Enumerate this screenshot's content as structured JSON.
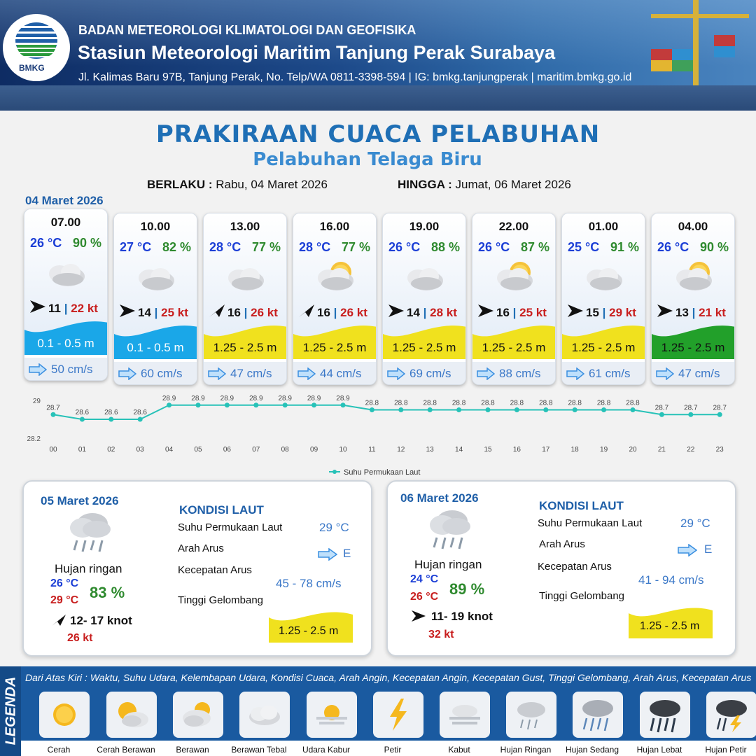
{
  "header": {
    "org": "BADAN METEOROLOGI KLIMATOLOGI DAN GEOFISIKA",
    "station": "Stasiun Meteorologi Maritim Tanjung Perak Surabaya",
    "address": "Jl. Kalimas Baru 97B, Tanjung Perak, No. Telp/WA 0811-3398-594 | IG: bmkg.tanjungperak | maritim.bmkg.go.id",
    "logo_text": "BMKG"
  },
  "title": "PRAKIRAAN CUACA PELABUHAN",
  "subtitle": "Pelabuhan Telaga Biru",
  "validity": {
    "from_label": "BERLAKU :",
    "from_value": "Rabu, 04 Maret 2026",
    "to_label": "HINGGA :",
    "to_value": "Jumat, 06 Maret 2026"
  },
  "day1_label": "04 Maret 2026",
  "forecasts": [
    {
      "time": "07.00",
      "temp": "26 °C",
      "hum": "90 %",
      "icon": "berawan-tebal",
      "wind_dir": "E",
      "wind": "11",
      "gust": "22 kt",
      "wave": "0.1 - 0.5 m",
      "wave_color": "#1aa7e8",
      "current": "50 cm/s"
    },
    {
      "time": "10.00",
      "temp": "27 °C",
      "hum": "82 %",
      "icon": "berawan-tebal",
      "wind_dir": "E",
      "wind": "14",
      "gust": "25 kt",
      "wave": "0.1 - 0.5 m",
      "wave_color": "#1aa7e8",
      "current": "60 cm/s"
    },
    {
      "time": "13.00",
      "temp": "28 °C",
      "hum": "77 %",
      "icon": "berawan-tebal",
      "wind_dir": "NE",
      "wind": "16",
      "gust": "26 kt",
      "wave": "1.25 - 2.5 m",
      "wave_color": "#f0e11e",
      "current": "47 cm/s"
    },
    {
      "time": "16.00",
      "temp": "28 °C",
      "hum": "77 %",
      "icon": "berawan",
      "wind_dir": "NE",
      "wind": "16",
      "gust": "26 kt",
      "wave": "1.25 - 2.5 m",
      "wave_color": "#f0e11e",
      "current": "44 cm/s"
    },
    {
      "time": "19.00",
      "temp": "26 °C",
      "hum": "88 %",
      "icon": "berawan-tebal",
      "wind_dir": "E",
      "wind": "14",
      "gust": "28 kt",
      "wave": "1.25 - 2.5 m",
      "wave_color": "#f0e11e",
      "current": "69 cm/s"
    },
    {
      "time": "22.00",
      "temp": "26 °C",
      "hum": "87 %",
      "icon": "berawan",
      "wind_dir": "E",
      "wind": "16",
      "gust": "25 kt",
      "wave": "1.25 - 2.5 m",
      "wave_color": "#f0e11e",
      "current": "88 cm/s"
    },
    {
      "time": "01.00",
      "temp": "25 °C",
      "hum": "91 %",
      "icon": "berawan-tebal",
      "wind_dir": "E",
      "wind": "15",
      "gust": "29 kt",
      "wave": "1.25 - 2.5 m",
      "wave_color": "#f0e11e",
      "current": "61 cm/s"
    },
    {
      "time": "04.00",
      "temp": "26 °C",
      "hum": "90 %",
      "icon": "berawan",
      "wind_dir": "E",
      "wind": "13",
      "gust": "21 kt",
      "wave": "1.25 - 2.5 m",
      "wave_color": "#22a02a",
      "current": "47 cm/s"
    }
  ],
  "chart_data": {
    "type": "line",
    "x": [
      "00",
      "01",
      "02",
      "03",
      "04",
      "05",
      "06",
      "07",
      "08",
      "09",
      "10",
      "11",
      "12",
      "13",
      "14",
      "15",
      "16",
      "17",
      "18",
      "19",
      "20",
      "21",
      "22",
      "23"
    ],
    "series": [
      {
        "name": "Suhu Permukaan Laut",
        "values": [
          28.7,
          28.6,
          28.6,
          28.6,
          28.9,
          28.9,
          28.9,
          28.9,
          28.9,
          28.9,
          28.9,
          28.8,
          28.8,
          28.8,
          28.8,
          28.8,
          28.8,
          28.8,
          28.8,
          28.8,
          28.8,
          28.7,
          28.7,
          28.7
        ],
        "color": "#27c2b8"
      }
    ],
    "yticks": [
      "29",
      "28.2"
    ],
    "ylim": [
      28.2,
      29.0
    ],
    "legend": "bottom-center"
  },
  "days": [
    {
      "date": "05 Maret 2026",
      "cond": "Hujan ringan",
      "tmin": "26 °C",
      "tmax": "29 °C",
      "hum": "83 %",
      "wind_dir": "NE",
      "wind": "12- 17 knot",
      "gust": "26 kt",
      "kondisi": "KONDISI LAUT",
      "sst_label": "Suhu Permukaan Laut",
      "sst": "29 °C",
      "dir_label": "Arah Arus",
      "dir": "E",
      "speed_label": "Kecepatan Arus",
      "speed": "45  - 78 cm/s",
      "wave_label": "Tinggi Gelombang",
      "wave": "1.25 - 2.5 m"
    },
    {
      "date": "06 Maret 2026",
      "cond": "Hujan ringan",
      "tmin": "24 °C",
      "tmax": "26 °C",
      "hum": "89 %",
      "wind_dir": "E",
      "wind": "11- 19 knot",
      "gust": "32 kt",
      "kondisi": "KONDISI LAUT",
      "sst_label": "Suhu Permukaan Laut",
      "sst": "29 °C",
      "dir_label": "Arah Arus",
      "dir": "E",
      "speed_label": "Kecepatan Arus",
      "speed": "41 - 94 cm/s",
      "wave_label": "Tinggi Gelombang",
      "wave": "1.25 - 2.5 m"
    }
  ],
  "legend": {
    "title": "LEGENDA",
    "desc": "Dari Atas Kiri : Waktu, Suhu Udara, Kelembapan Udara, Kondisi Cuaca, Arah Angin, Kecepatan Angin, Kecepatan Gust, Tinggi Gelombang, Arah Arus, Kecepatan Arus",
    "items": [
      {
        "label": "Cerah",
        "icon": "sun-icon"
      },
      {
        "label": "Cerah Berawan",
        "icon": "sun-cloud-icon"
      },
      {
        "label": "Berawan",
        "icon": "cloud-sun-icon"
      },
      {
        "label": "Berawan Tebal",
        "icon": "cloud-icon"
      },
      {
        "label": "Udara Kabur",
        "icon": "haze-icon"
      },
      {
        "label": "Petir",
        "icon": "lightning-icon"
      },
      {
        "label": "Kabut",
        "icon": "fog-icon"
      },
      {
        "label": "Hujan Ringan",
        "icon": "light-rain-icon"
      },
      {
        "label": "Hujan Sedang",
        "icon": "moderate-rain-icon"
      },
      {
        "label": "Hujan Lebat",
        "icon": "heavy-rain-icon"
      },
      {
        "label": "Hujan Petir",
        "icon": "thunderstorm-icon"
      }
    ]
  }
}
